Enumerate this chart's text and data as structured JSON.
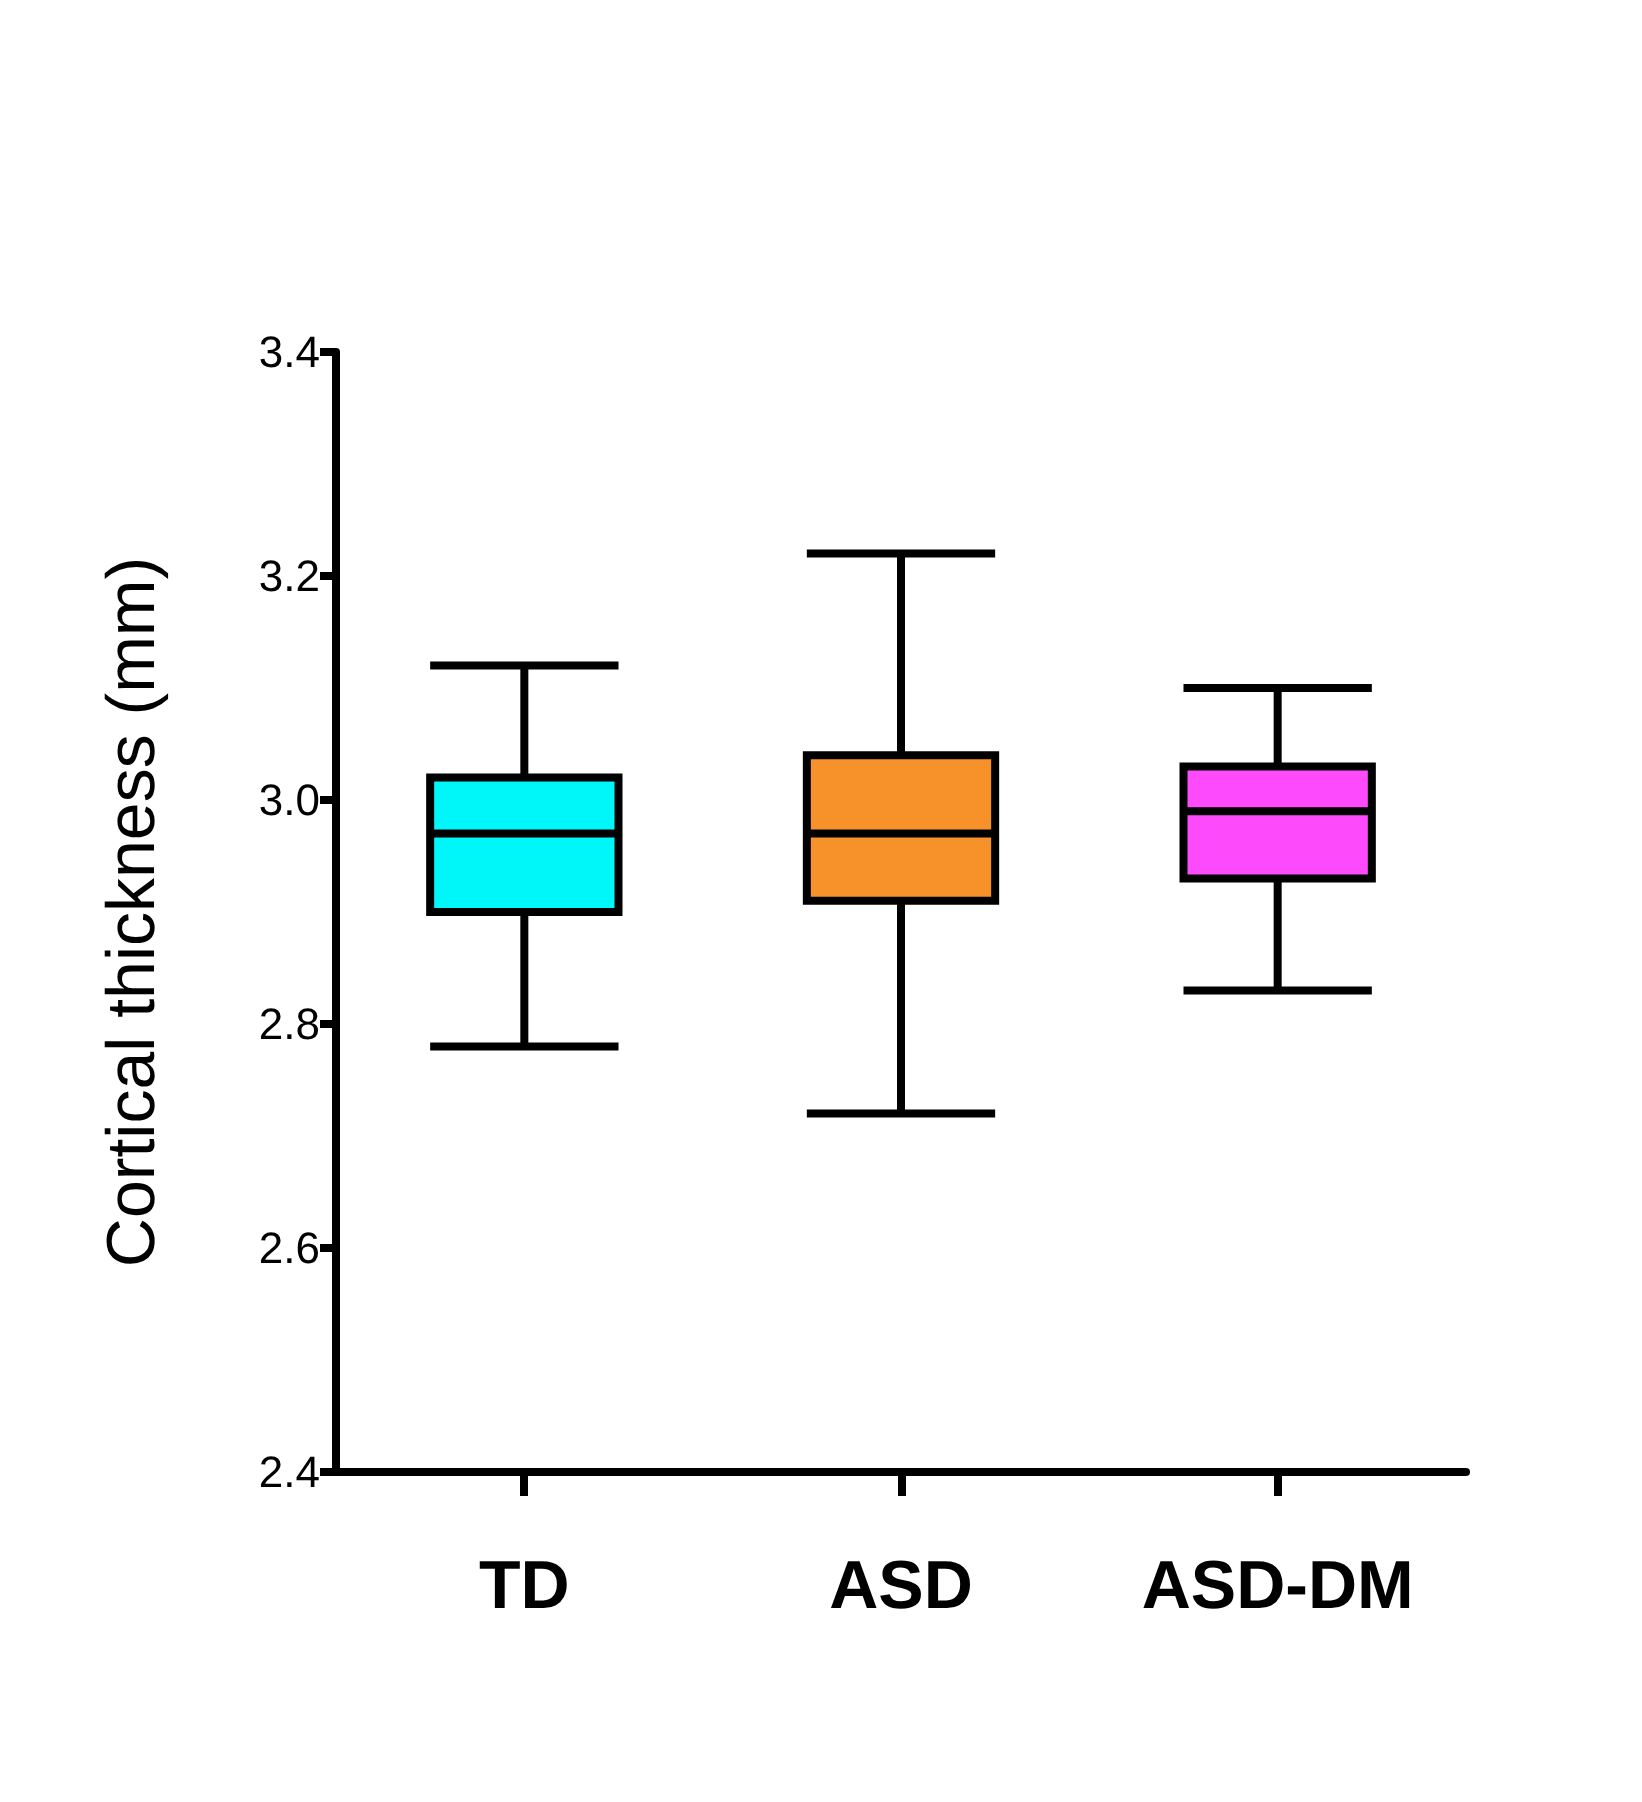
{
  "chart_data": {
    "type": "box",
    "ylabel": "Cortical thickness (mm)",
    "categories": [
      "TD",
      "ASD",
      "ASD-DM"
    ],
    "colors": [
      "#00f7fa",
      "#f7922a",
      "#fd4bfc"
    ],
    "boxes": [
      {
        "low": 2.78,
        "q1": 2.9,
        "median": 2.97,
        "q3": 3.02,
        "high": 3.12
      },
      {
        "low": 2.72,
        "q1": 2.91,
        "median": 2.97,
        "q3": 3.04,
        "high": 3.22
      },
      {
        "low": 2.83,
        "q1": 2.93,
        "median": 2.99,
        "q3": 3.03,
        "high": 3.1
      }
    ],
    "ylim": [
      2.4,
      3.4
    ],
    "yticks": [
      2.4,
      2.6,
      2.8,
      {
        "value": 3,
        "label": "3.0"
      },
      3.2,
      3.4
    ],
    "grid": false
  }
}
